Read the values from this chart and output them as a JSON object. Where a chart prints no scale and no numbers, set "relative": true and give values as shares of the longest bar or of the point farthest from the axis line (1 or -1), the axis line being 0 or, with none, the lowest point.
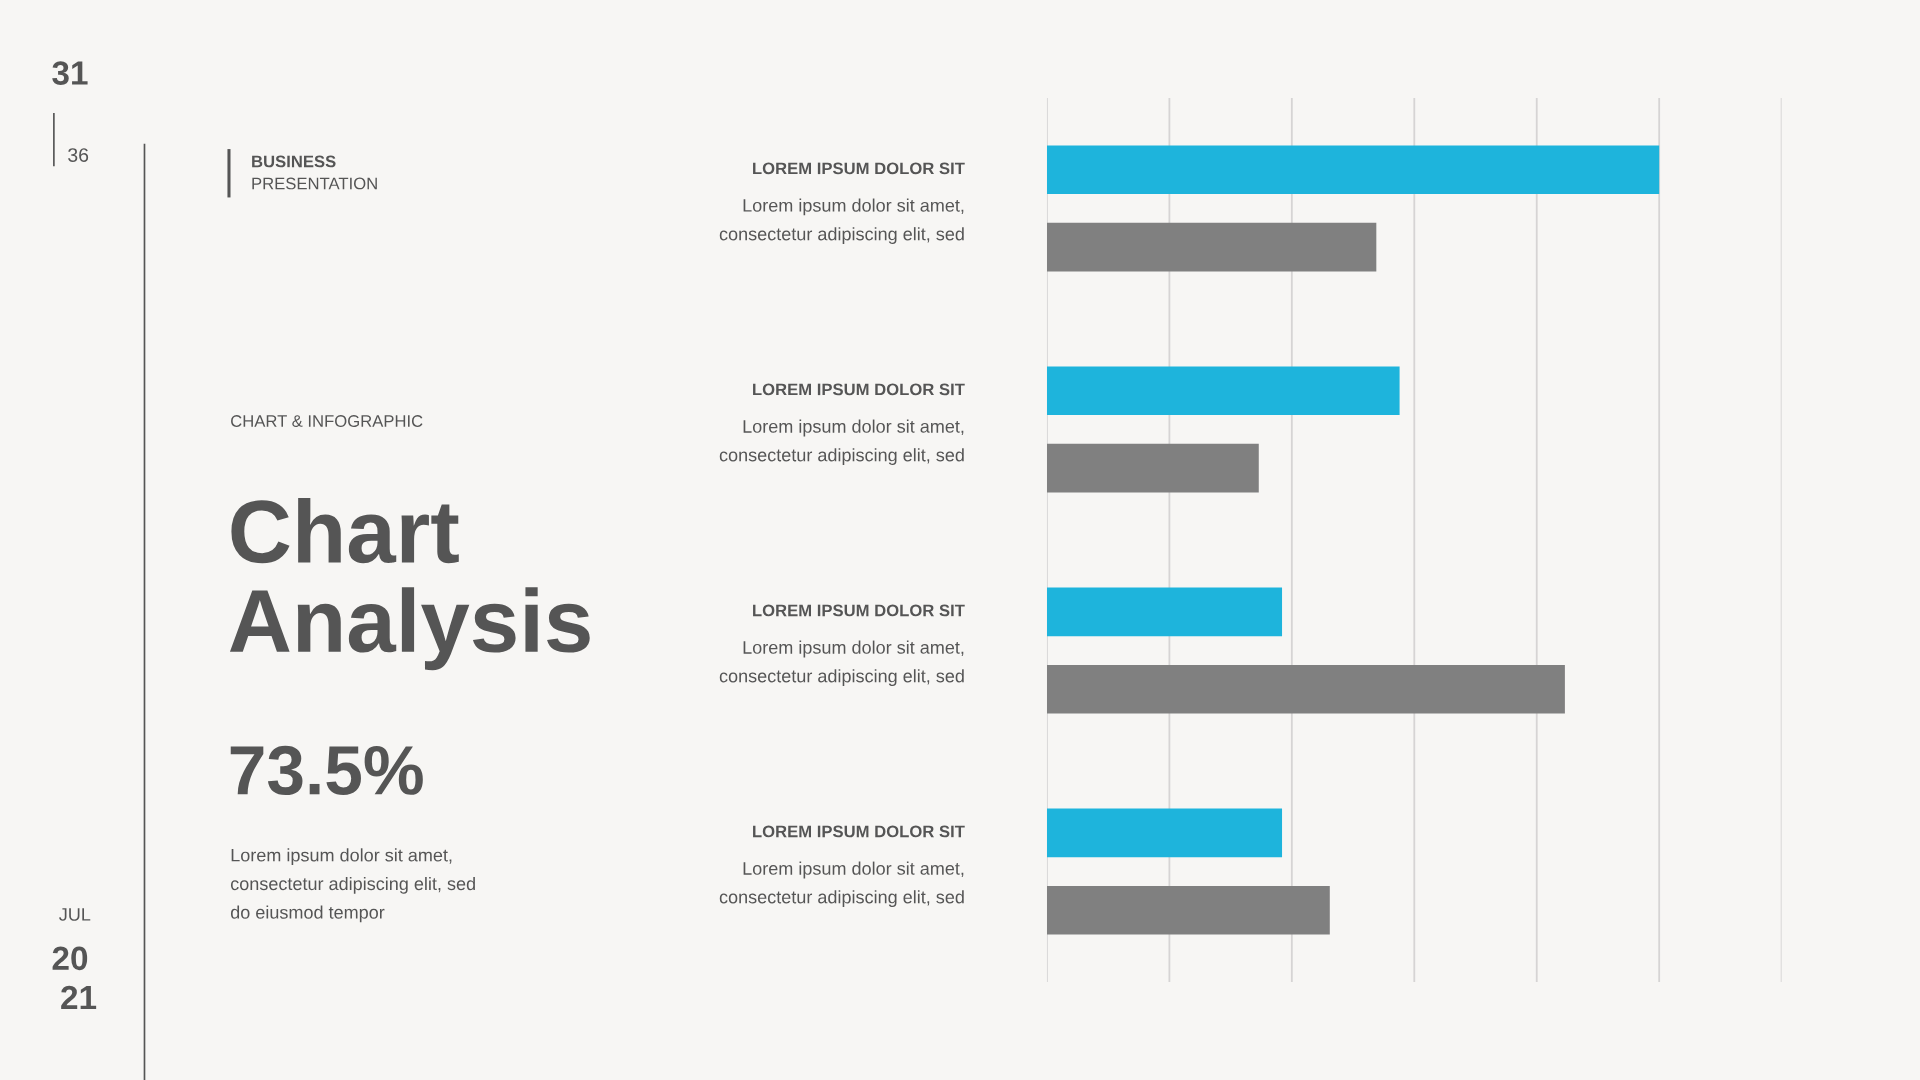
{
  "chart_data": {
    "type": "bar",
    "orientation": "horizontal",
    "relative": true,
    "grid": "x",
    "title": "Chart\nAnalysis",
    "subtitle": "CHART & INFOGRAPHIC",
    "categories": [
      "LOREM IPSUM DOLOR SIT",
      "LOREM IPSUM DOLOR SIT",
      "LOREM IPSUM DOLOR SIT",
      "LOREM IPSUM DOLOR SIT"
    ],
    "series": [
      {
        "color": "#1eb4dc",
        "values": [
          1,
          0.576,
          0.384,
          0.384
        ]
      },
      {
        "color": "#808080",
        "values": [
          0.538,
          0.346,
          0.846,
          0.462
        ]
      }
    ],
    "annotations": [
      "31",
      "36",
      "BUSINESS",
      "PRESENTATION",
      "73.5%",
      "Lorem ipsum dolor sit amet,\nconsectetur adipiscing elit, sed\ndo eiusmod tempor",
      "JUL",
      "20",
      "21",
      "Lorem ipsum dolor sit amet,\nconsectetur adipiscing elit, sed",
      "Lorem ipsum dolor sit amet,\nconsectetur adipiscing elit, sed",
      "Lorem ipsum dolor sit amet,\nconsectetur adipiscing elit, sed",
      "Lorem ipsum dolor sit amet,\nconsectetur adipiscing elit, sed"
    ]
  }
}
